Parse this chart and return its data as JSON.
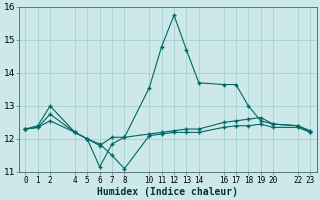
{
  "title": "",
  "xlabel": "Humidex (Indice chaleur)",
  "bg_color": "#cce8e8",
  "grid_color": "#aad4d4",
  "line_color": "#006666",
  "x_ticks": [
    0,
    1,
    2,
    4,
    5,
    6,
    7,
    8,
    10,
    11,
    12,
    13,
    14,
    16,
    17,
    18,
    19,
    20,
    22,
    23
  ],
  "xlim": [
    -0.5,
    23.5
  ],
  "ylim": [
    11,
    16
  ],
  "yticks": [
    11,
    12,
    13,
    14,
    15,
    16
  ],
  "series1": {
    "x": [
      0,
      1,
      2,
      4,
      5,
      6,
      7,
      8,
      10,
      11,
      12,
      13,
      14,
      16,
      17,
      18,
      19,
      20,
      22,
      23
    ],
    "y": [
      12.3,
      12.35,
      12.55,
      12.2,
      12.0,
      11.85,
      11.5,
      11.1,
      12.1,
      12.15,
      12.2,
      12.2,
      12.2,
      12.35,
      12.4,
      12.4,
      12.45,
      12.35,
      12.35,
      12.2
    ]
  },
  "series2": {
    "x": [
      0,
      1,
      2,
      4,
      5,
      6,
      7,
      8,
      10,
      11,
      12,
      13,
      14,
      16,
      17,
      18,
      19,
      20,
      22,
      23
    ],
    "y": [
      12.3,
      12.35,
      12.75,
      12.2,
      12.0,
      11.8,
      12.05,
      12.05,
      12.15,
      12.2,
      12.25,
      12.3,
      12.3,
      12.5,
      12.55,
      12.6,
      12.65,
      12.45,
      12.4,
      12.25
    ]
  },
  "series3": {
    "x": [
      0,
      1,
      2,
      4,
      5,
      6,
      7,
      8,
      10,
      11,
      12,
      13,
      14,
      16,
      17,
      18,
      19,
      20,
      22,
      23
    ],
    "y": [
      12.3,
      12.4,
      13.0,
      12.2,
      12.0,
      11.15,
      11.85,
      12.05,
      13.55,
      14.8,
      15.75,
      14.7,
      13.7,
      13.65,
      13.65,
      13.0,
      12.55,
      12.45,
      12.4,
      12.2
    ]
  }
}
